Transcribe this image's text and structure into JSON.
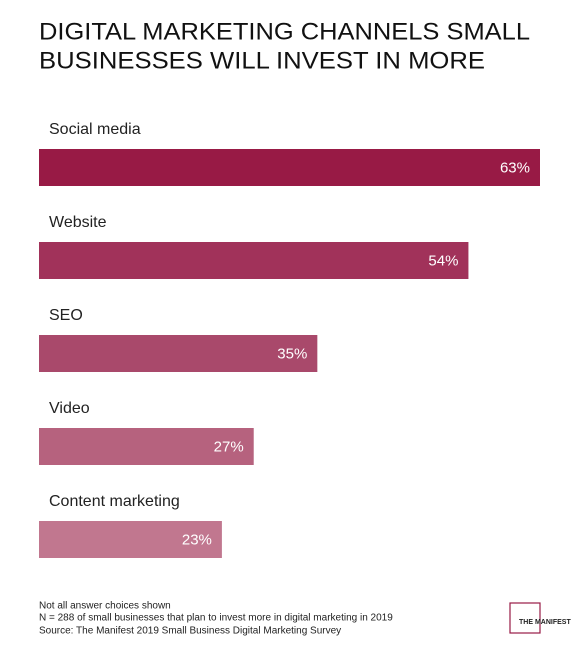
{
  "chart_data": {
    "type": "hbar",
    "title": [
      "DIGITAL MARKETING CHANNELS SMALL",
      "BUSINESSES WILL INVEST IN MORE"
    ],
    "categories": [
      "Social media",
      "Website",
      "SEO",
      "Video",
      "Content marketing"
    ],
    "values": [
      63,
      54,
      35,
      27,
      23
    ],
    "value_labels": [
      "63%",
      "54%",
      "35%",
      "27%",
      "23%"
    ],
    "colors": [
      "#981a45",
      "#a1325a",
      "#a9496b",
      "#b6627e",
      "#c1778f"
    ]
  },
  "notes": [
    "Not all answer choices shown",
    "N = 288 of small businesses that plan to invest more in digital marketing in 2019",
    "Source: The Manifest 2019 Small Business Digital Marketing Survey"
  ],
  "logo": "THE MANIFEST"
}
